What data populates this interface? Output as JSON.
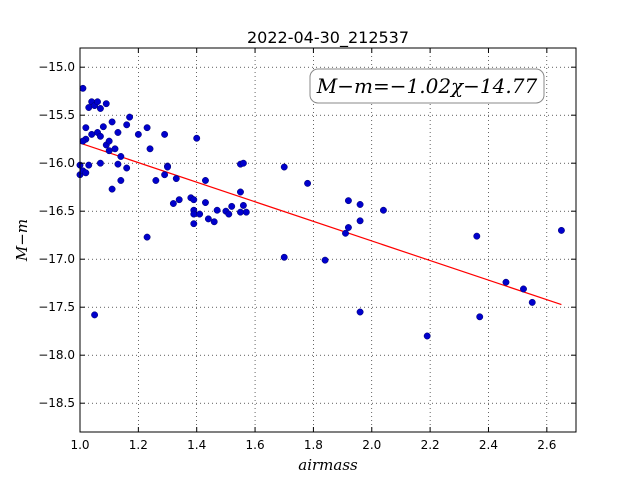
{
  "chart_data": {
    "type": "scatter",
    "title": "2022-04-30_212537",
    "xlabel": "airmass",
    "ylabel": "M−m",
    "xlim": [
      1.0,
      2.7
    ],
    "ylim": [
      -18.8,
      -14.8
    ],
    "y_inverted": true,
    "grid": true,
    "xticks": [
      "1.0",
      "1.2",
      "1.4",
      "1.6",
      "1.8",
      "2.0",
      "2.2",
      "2.4",
      "2.6"
    ],
    "yticks": [
      "−15.0",
      "−15.5",
      "−16.0",
      "−16.5",
      "−17.0",
      "−17.5",
      "−18.0",
      "−18.5"
    ],
    "xtick_values": [
      1.0,
      1.2,
      1.4,
      1.6,
      1.8,
      2.0,
      2.2,
      2.4,
      2.6
    ],
    "ytick_values": [
      -15.0,
      -15.5,
      -16.0,
      -16.5,
      -17.0,
      -17.5,
      -18.0,
      -18.5
    ],
    "annotation": "M−m=−1.02χ−14.77",
    "fit": {
      "slope": -1.02,
      "intercept": -14.77,
      "x_range": [
        1.0,
        2.65
      ],
      "color": "#ff0000"
    },
    "marker_color": "#0000cc",
    "points": [
      [
        1.01,
        -15.22
      ],
      [
        1.02,
        -15.63
      ],
      [
        1.02,
        -15.75
      ],
      [
        1.01,
        -15.77
      ],
      [
        1.03,
        -15.42
      ],
      [
        1.04,
        -15.36
      ],
      [
        1.04,
        -15.7
      ],
      [
        1.05,
        -15.4
      ],
      [
        1.06,
        -15.36
      ],
      [
        1.06,
        -15.68
      ],
      [
        1.07,
        -15.43
      ],
      [
        1.07,
        -15.72
      ],
      [
        1.08,
        -15.62
      ],
      [
        1.09,
        -15.38
      ],
      [
        1.09,
        -15.81
      ],
      [
        1.1,
        -15.77
      ],
      [
        1.1,
        -15.87
      ],
      [
        1.11,
        -15.57
      ],
      [
        1.12,
        -15.85
      ],
      [
        1.13,
        -15.68
      ],
      [
        1.14,
        -15.93
      ],
      [
        1.0,
        -16.02
      ],
      [
        1.0,
        -16.12
      ],
      [
        1.01,
        -16.08
      ],
      [
        1.02,
        -16.1
      ],
      [
        1.03,
        -16.02
      ],
      [
        1.07,
        -16.0
      ],
      [
        1.11,
        -16.27
      ],
      [
        1.13,
        -16.01
      ],
      [
        1.14,
        -16.18
      ],
      [
        1.16,
        -16.05
      ],
      [
        1.16,
        -15.6
      ],
      [
        1.17,
        -15.52
      ],
      [
        1.2,
        -15.7
      ],
      [
        1.23,
        -15.63
      ],
      [
        1.24,
        -15.85
      ],
      [
        1.26,
        -16.18
      ],
      [
        1.29,
        -15.7
      ],
      [
        1.29,
        -16.12
      ],
      [
        1.3,
        -16.03
      ],
      [
        1.3,
        -16.04
      ],
      [
        1.32,
        -16.42
      ],
      [
        1.33,
        -16.16
      ],
      [
        1.34,
        -16.38
      ],
      [
        1.38,
        -16.36
      ],
      [
        1.39,
        -16.38
      ],
      [
        1.39,
        -16.49
      ],
      [
        1.39,
        -16.53
      ],
      [
        1.4,
        -15.74
      ],
      [
        1.41,
        -16.53
      ],
      [
        1.43,
        -16.18
      ],
      [
        1.43,
        -16.41
      ],
      [
        1.44,
        -16.58
      ],
      [
        1.46,
        -16.61
      ],
      [
        1.47,
        -16.49
      ],
      [
        1.5,
        -16.5
      ],
      [
        1.51,
        -16.53
      ],
      [
        1.52,
        -16.45
      ],
      [
        1.55,
        -16.3
      ],
      [
        1.55,
        -16.51
      ],
      [
        1.55,
        -16.01
      ],
      [
        1.56,
        -16.0
      ],
      [
        1.56,
        -16.44
      ],
      [
        1.57,
        -16.51
      ],
      [
        1.39,
        -16.63
      ],
      [
        1.23,
        -16.77
      ],
      [
        1.05,
        -17.58
      ],
      [
        1.7,
        -16.04
      ],
      [
        1.7,
        -16.98
      ],
      [
        1.78,
        -16.21
      ],
      [
        1.84,
        -17.01
      ],
      [
        1.91,
        -16.73
      ],
      [
        1.92,
        -16.39
      ],
      [
        1.92,
        -16.67
      ],
      [
        1.96,
        -16.43
      ],
      [
        1.96,
        -16.6
      ],
      [
        1.96,
        -17.55
      ],
      [
        2.04,
        -16.49
      ],
      [
        2.19,
        -17.8
      ],
      [
        2.36,
        -16.76
      ],
      [
        2.37,
        -17.6
      ],
      [
        2.46,
        -17.24
      ],
      [
        2.52,
        -17.31
      ],
      [
        2.55,
        -17.45
      ],
      [
        2.65,
        -16.7
      ]
    ]
  }
}
